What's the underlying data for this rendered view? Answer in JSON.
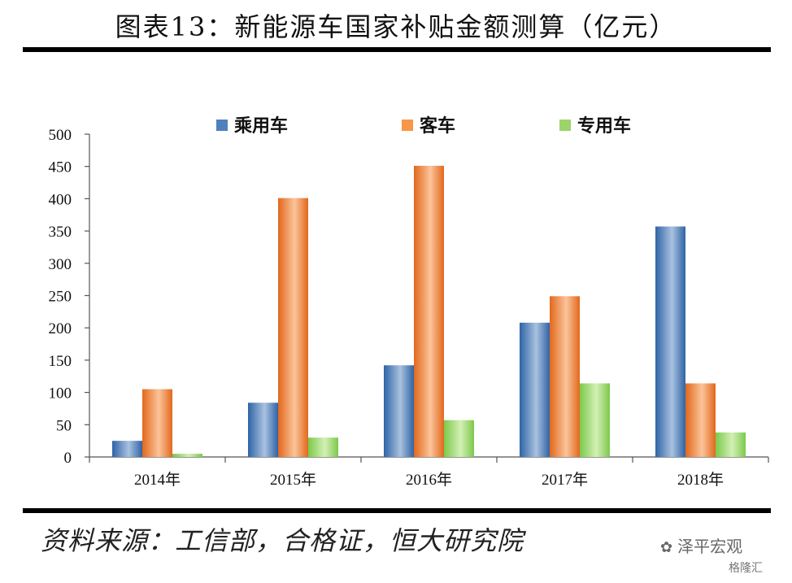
{
  "title": "图表13：新能源车国家补贴金额测算（亿元）",
  "source": "资料来源：工信部，合格证，恒大研究院",
  "watermark": {
    "brand": "泽平宏观",
    "site": "格隆汇"
  },
  "colors": {
    "series_1": "#4f81bd",
    "series_2": "#f79646",
    "series_3": "#9bd46a"
  },
  "chart_data": {
    "type": "bar",
    "categories": [
      "2014年",
      "2015年",
      "2016年",
      "2017年",
      "2018年"
    ],
    "series": [
      {
        "name": "乘用车",
        "values": [
          25,
          84,
          142,
          208,
          357
        ]
      },
      {
        "name": "客车",
        "values": [
          105,
          401,
          451,
          249,
          114
        ]
      },
      {
        "name": "专用车",
        "values": [
          5,
          30,
          57,
          114,
          38
        ]
      }
    ],
    "yticks": [
      0,
      50,
      100,
      150,
      200,
      250,
      300,
      350,
      400,
      450,
      500
    ],
    "ylim": [
      0,
      500
    ],
    "grid": false,
    "legend_position": "top"
  }
}
